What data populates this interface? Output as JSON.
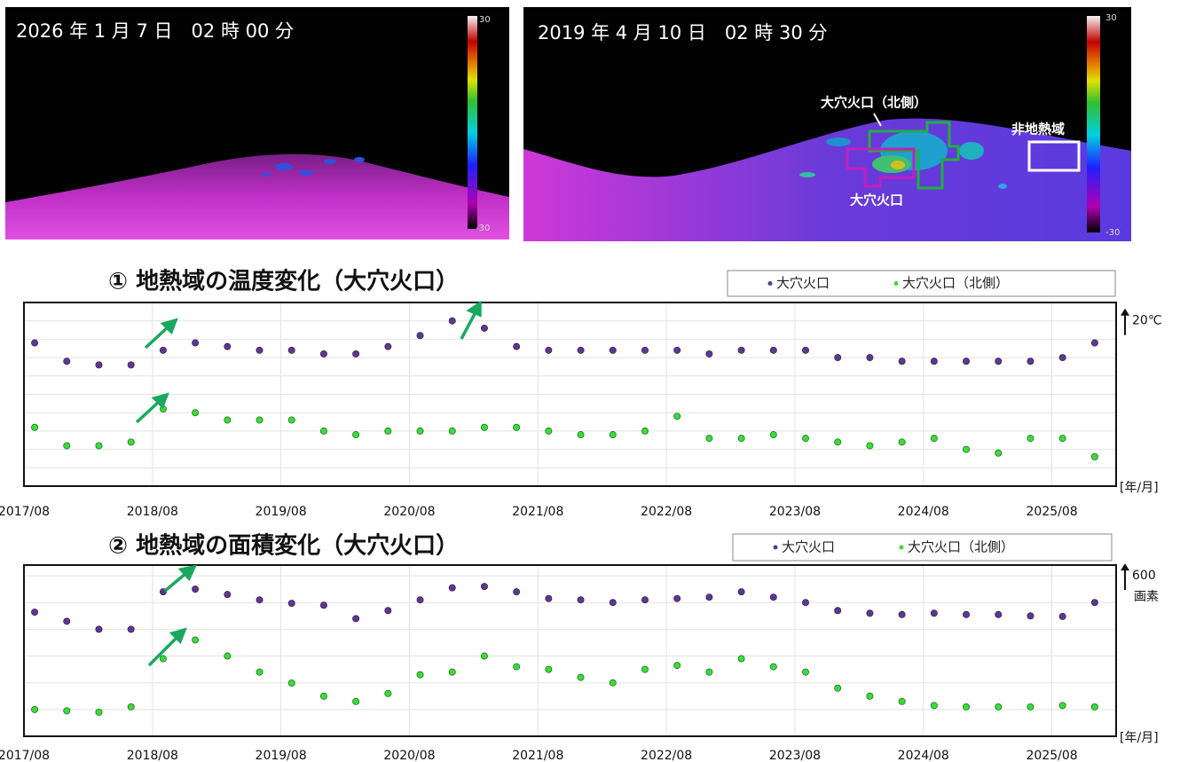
{
  "images": [
    {
      "timestamp": "2026 年 1 月 7 日　02 時 00 分",
      "scale_max": 30,
      "scale_min": -30
    },
    {
      "timestamp": "2019 年 4 月 10 日　02 時 30 分",
      "scale_max": 30,
      "scale_min": -30,
      "labels": [
        "大穴火口（北側）",
        "非地熱域",
        "大穴火口"
      ]
    }
  ],
  "chart_data": [
    {
      "type": "scatter",
      "title": "① 地熱域の温度変化（大穴火口）",
      "annotation": {
        "value": 20,
        "label": "20℃"
      },
      "x_unit": "[年/月]",
      "xlim": [
        "2017/08",
        "2026/02"
      ],
      "xticks": [
        "2017/08",
        "2018/08",
        "2019/08",
        "2020/08",
        "2021/08",
        "2022/08",
        "2023/08",
        "2024/08",
        "2025/08"
      ],
      "ylim": [
        -25,
        25
      ],
      "ygrid": [
        -20,
        -15,
        -10,
        -5,
        0,
        5,
        10,
        15,
        20
      ],
      "grid": true,
      "x": [
        "2017/09",
        "2017/12",
        "2018/03",
        "2018/06",
        "2018/09",
        "2018/12",
        "2019/03",
        "2019/06",
        "2019/09",
        "2019/12",
        "2020/03",
        "2020/06",
        "2020/09",
        "2020/12",
        "2021/03",
        "2021/06",
        "2021/09",
        "2021/12",
        "2022/03",
        "2022/06",
        "2022/09",
        "2022/12",
        "2023/03",
        "2023/06",
        "2023/09",
        "2023/12",
        "2024/03",
        "2024/06",
        "2024/09",
        "2024/12",
        "2025/03",
        "2025/06",
        "2025/09",
        "2025/12"
      ],
      "series": [
        {
          "name": "大穴火口",
          "color": "#5b3a8c",
          "values": [
            14,
            9,
            8,
            8,
            12,
            14,
            13,
            12,
            12,
            11,
            11,
            13,
            16,
            20,
            18,
            13,
            12,
            12,
            12,
            12,
            12,
            11,
            12,
            12,
            12,
            10,
            10,
            9,
            9,
            9,
            9,
            9,
            10,
            14
          ]
        },
        {
          "name": "大穴火口（北側）",
          "color": "#3fd93f",
          "values": [
            -9,
            -14,
            -14,
            -13,
            -4,
            -5,
            -7,
            -7,
            -7,
            -10,
            -11,
            -10,
            -10,
            -10,
            -9,
            -9,
            -10,
            -11,
            -11,
            -10,
            -6,
            -12,
            -12,
            -11,
            -12,
            -13,
            -14,
            -13,
            -12,
            -15,
            -16,
            -12,
            -12,
            -17
          ]
        }
      ]
    },
    {
      "type": "scatter",
      "title": "② 地熱域の面積変化（大穴火口）",
      "annotation": {
        "value": 600,
        "label": "600",
        "unit": "画素"
      },
      "x_unit": "[年/月]",
      "xlim": [
        "2017/08",
        "2026/02"
      ],
      "xticks": [
        "2017/08",
        "2018/08",
        "2019/08",
        "2020/08",
        "2021/08",
        "2022/08",
        "2023/08",
        "2024/08",
        "2025/08"
      ],
      "ylim": [
        0,
        640
      ],
      "ygrid": [
        100,
        200,
        300,
        400,
        500,
        600
      ],
      "grid": true,
      "x": [
        "2017/09",
        "2017/12",
        "2018/03",
        "2018/06",
        "2018/09",
        "2018/12",
        "2019/03",
        "2019/06",
        "2019/09",
        "2019/12",
        "2020/03",
        "2020/06",
        "2020/09",
        "2020/12",
        "2021/03",
        "2021/06",
        "2021/09",
        "2021/12",
        "2022/03",
        "2022/06",
        "2022/09",
        "2022/12",
        "2023/03",
        "2023/06",
        "2023/09",
        "2023/12",
        "2024/03",
        "2024/06",
        "2024/09",
        "2024/12",
        "2025/03",
        "2025/06",
        "2025/09",
        "2025/12"
      ],
      "series": [
        {
          "name": "大穴火口",
          "color": "#5b3a8c",
          "values": [
            464,
            430,
            400,
            400,
            540,
            550,
            530,
            510,
            497,
            490,
            440,
            470,
            510,
            555,
            560,
            540,
            515,
            510,
            500,
            510,
            515,
            520,
            540,
            520,
            500,
            470,
            460,
            455,
            460,
            455,
            455,
            450,
            448,
            500
          ]
        },
        {
          "name": "大穴火口（北側）",
          "color": "#3fd93f",
          "values": [
            100,
            95,
            90,
            110,
            290,
            360,
            300,
            240,
            199,
            150,
            130,
            160,
            230,
            240,
            300,
            260,
            250,
            220,
            200,
            250,
            265,
            240,
            290,
            260,
            240,
            180,
            150,
            130,
            115,
            110,
            110,
            110,
            115,
            110
          ]
        }
      ]
    }
  ]
}
